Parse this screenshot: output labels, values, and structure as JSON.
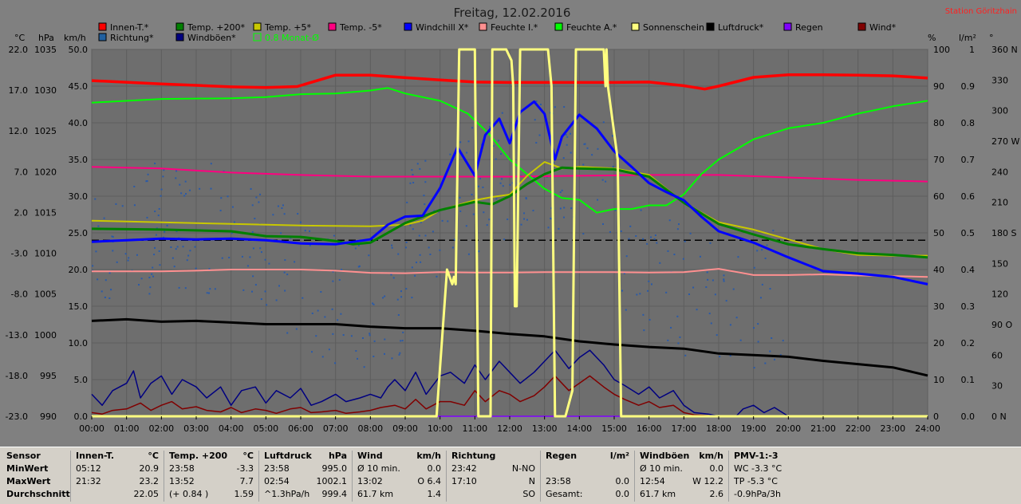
{
  "title": "Freitag, 12.02.2016",
  "station": "Station Göritzhain",
  "axis_units": {
    "c": "°C",
    "hpa": "hPa",
    "kmh": "km/h",
    "pct": "%",
    "lm2": "l/m²",
    "deg": "°"
  },
  "legend": [
    {
      "label": "Innen-T.*",
      "color": "#ff0000"
    },
    {
      "label": "Temp. +200*",
      "color": "#008000"
    },
    {
      "label": "Temp. +5*",
      "color": "#c8c800"
    },
    {
      "label": "Temp. -5*",
      "color": "#ff0080"
    },
    {
      "label": "Windchill X*",
      "color": "#0000ff"
    },
    {
      "label": "Feuchte I.*",
      "color": "#ff9090"
    },
    {
      "label": "Feuchte A.*",
      "color": "#00ff00"
    },
    {
      "label": "Sonnenschein",
      "color": "#ffff80"
    },
    {
      "label": "Luftdruck*",
      "color": "#000000"
    },
    {
      "label": "Regen",
      "color": "#8000ff"
    },
    {
      "label": "Wind*",
      "color": "#800000"
    },
    {
      "label": "Richtung*",
      "color": "#2060a0"
    },
    {
      "label": "Windböen*",
      "color": "#000080"
    },
    {
      "label": "0.8 Monat-Ø",
      "color": "#00ff00",
      "outline": true
    }
  ],
  "chart_data": {
    "type": "line",
    "x_ticks": [
      "00:00",
      "01:00",
      "02:00",
      "03:00",
      "04:00",
      "05:00",
      "06:00",
      "07:00",
      "08:00",
      "09:00",
      "10:00",
      "11:00",
      "12:00",
      "13:00",
      "14:00",
      "15:00",
      "16:00",
      "17:00",
      "18:00",
      "19:00",
      "20:00",
      "21:00",
      "22:00",
      "23:00",
      "24:00"
    ],
    "xlim": [
      0,
      24
    ],
    "axes": {
      "temp_c": {
        "ticks": [
          "22.0",
          "17.0",
          "12.0",
          "7.0",
          "2.0",
          "-3.0",
          "-8.0",
          "-13.0",
          "-18.0",
          "-23.0"
        ],
        "ylim": [
          -23,
          22
        ]
      },
      "pressure_hpa": {
        "ticks": [
          "1035",
          "1030",
          "1025",
          "1020",
          "1015",
          "1010",
          "1005",
          "1000",
          "995",
          "990"
        ],
        "ylim": [
          990,
          1035
        ]
      },
      "wind_kmh": {
        "ticks": [
          "50.0",
          "45.0",
          "40.0",
          "35.0",
          "30.0",
          "25.0",
          "20.0",
          "15.0",
          "10.0",
          "5.0",
          "0.0"
        ],
        "ylim": [
          0,
          50
        ]
      },
      "humidity_pct": {
        "ticks": [
          "100",
          "90",
          "80",
          "70",
          "60",
          "50",
          "40",
          "30",
          "20",
          "10",
          "0"
        ],
        "ylim": [
          0,
          100
        ]
      },
      "rain_lm2": {
        "ticks": [
          "1",
          "0.9",
          "0.8",
          "0.7",
          "0.6",
          "0.5",
          "0.4",
          "0.3",
          "0.2",
          "0.1",
          "0.0"
        ],
        "ylim": [
          0,
          1
        ]
      },
      "direction_deg": {
        "ticks": [
          "360 N",
          "330",
          "300",
          "270 W",
          "240",
          "210",
          "180 S",
          "150",
          "120",
          "90 O",
          "60",
          "30",
          "0 N"
        ],
        "ylim": [
          0,
          360
        ]
      }
    },
    "reference_line": {
      "value_kmh": 24.0,
      "style": "dashed"
    },
    "series": [
      {
        "name": "Innen-T.*",
        "axis": "humidity_pct",
        "color": "#ff0000",
        "x": [
          0,
          2,
          4,
          5,
          5.9,
          7,
          8,
          9,
          10,
          11,
          12,
          13,
          14,
          15,
          16,
          17,
          17.6,
          18,
          19,
          20,
          21,
          22,
          23,
          24
        ],
        "y": [
          91.5,
          90.6,
          89.8,
          89.6,
          89.9,
          93,
          93,
          92.3,
          91.7,
          91.1,
          91,
          91,
          91,
          91,
          91.1,
          90.1,
          89.2,
          90,
          92.4,
          93.1,
          93.1,
          93,
          92.8,
          92.2
        ]
      },
      {
        "name": "Feuchte A.*",
        "axis": "humidity_pct",
        "color": "#00ff00",
        "x": [
          0,
          2,
          4,
          5,
          6,
          7,
          8,
          8.5,
          9,
          10,
          10.8,
          11.4,
          12,
          12.5,
          13,
          13.5,
          14,
          14.5,
          15,
          15.5,
          16,
          16.5,
          17,
          17.5,
          18,
          19,
          20,
          21,
          22,
          23,
          24
        ],
        "y": [
          85.5,
          86.5,
          86.7,
          87,
          87.8,
          88,
          88.8,
          89.5,
          88,
          86,
          82.5,
          77,
          70,
          66,
          62,
          59.5,
          59,
          55.5,
          56.5,
          56.5,
          57.5,
          57.5,
          60.5,
          66,
          70,
          75.5,
          78.5,
          80,
          82.5,
          84.5,
          86
        ]
      },
      {
        "name": "Feuchte I.*",
        "axis": "humidity_pct",
        "color": "#ff9090",
        "x": [
          0,
          2,
          3,
          4,
          5,
          6,
          7,
          8,
          9,
          10,
          11,
          12,
          13,
          14,
          15,
          16,
          17,
          18,
          18.6,
          19,
          20,
          21,
          22,
          23,
          24
        ],
        "y": [
          39.5,
          39.5,
          39.7,
          40,
          40,
          40,
          39.7,
          39.1,
          39,
          39.3,
          39.2,
          39.2,
          39.3,
          39.3,
          39.3,
          39.2,
          39.3,
          40.2,
          39.2,
          38.5,
          38.5,
          38.7,
          38.4,
          38.2,
          38
        ]
      },
      {
        "name": "Sonnenschein",
        "axis": "humidity_pct",
        "color": "#ffff80",
        "x": [
          0,
          9.9,
          10.2,
          10.35,
          10.4,
          10.45,
          10.55,
          10.6,
          11,
          11.05,
          11.1,
          11.2,
          11.45,
          11.5,
          11.6,
          11.9,
          12.05,
          12.1,
          12.15,
          12.2,
          12.3,
          12.7,
          13.1,
          13.2,
          13.3,
          13.6,
          13.8,
          13.9,
          14.3,
          14.7,
          14.75,
          14.78,
          14.82,
          15.1,
          15.2,
          15.3,
          24
        ],
        "y": [
          0,
          0,
          40,
          36,
          38,
          36,
          100,
          100,
          100,
          50,
          0,
          0,
          0,
          100,
          100,
          100,
          97,
          90,
          30,
          30,
          100,
          100,
          100,
          90,
          0,
          0,
          7,
          100,
          100,
          100,
          90,
          100,
          90,
          70,
          0,
          0,
          0
        ]
      },
      {
        "name": "Temp. -5*",
        "axis": "temp_c",
        "color": "#ff0080",
        "x": [
          0,
          2,
          4,
          6,
          8,
          10,
          12,
          14,
          16,
          18,
          20,
          22,
          24
        ],
        "y": [
          7.6,
          7.4,
          6.9,
          6.6,
          6.4,
          6.4,
          6.4,
          6.5,
          6.6,
          6.6,
          6.3,
          6.0,
          5.8
        ]
      },
      {
        "name": "Temp. +5*",
        "axis": "temp_c",
        "color": "#c8c800",
        "x": [
          0,
          2,
          4,
          6,
          8,
          9,
          9.5,
          10,
          11,
          11.5,
          12,
          12.5,
          13,
          13.5,
          14,
          14.5,
          15,
          16,
          17,
          18,
          19,
          20,
          21,
          22,
          23,
          24
        ],
        "y": [
          1,
          0.8,
          0.6,
          0.4,
          0.3,
          0.5,
          1,
          2.3,
          3.5,
          3.9,
          4.2,
          6.5,
          8.2,
          7.4,
          7.6,
          7.5,
          7.4,
          6.6,
          3.2,
          0.8,
          -0.1,
          -1.3,
          -2.5,
          -3.2,
          -3.3,
          -3.3
        ]
      },
      {
        "name": "Temp. +200*",
        "axis": "temp_c",
        "color": "#008000",
        "x": [
          0,
          2,
          4,
          5,
          6,
          7,
          7.5,
          8,
          9,
          10,
          11,
          11.5,
          12,
          12.5,
          13,
          13.5,
          14,
          15,
          16,
          17,
          18,
          19,
          20,
          21,
          22,
          23,
          24
        ],
        "y": [
          0,
          -0.1,
          -0.3,
          -0.9,
          -1,
          -1.5,
          -1.9,
          -1.7,
          0.7,
          2.3,
          3.3,
          3,
          4,
          5.5,
          6.7,
          7.5,
          7.4,
          7.3,
          6.4,
          3.2,
          0.6,
          -0.7,
          -1.9,
          -2.5,
          -3,
          -3.2,
          -3.5
        ]
      },
      {
        "name": "Windchill X*",
        "axis": "temp_c",
        "color": "#0000ff",
        "x": [
          0,
          1,
          2,
          3,
          4,
          5,
          5.5,
          6,
          7,
          8,
          8.5,
          9,
          9.5,
          10,
          10.5,
          11,
          11.3,
          11.7,
          12,
          12.3,
          12.7,
          13,
          13.3,
          13.5,
          14,
          14.5,
          15,
          15.5,
          16,
          16.5,
          17,
          17.5,
          18,
          19,
          20,
          21,
          22,
          23,
          24
        ],
        "y": [
          -1.6,
          -1.4,
          -1.2,
          -1.3,
          -1.2,
          -1.4,
          -1.6,
          -1.8,
          -1.9,
          -1.3,
          0.5,
          1.5,
          1.6,
          5,
          10,
          6.5,
          11.5,
          13.5,
          10.5,
          14.3,
          15.6,
          14.1,
          8.5,
          11.3,
          14,
          12.3,
          9.5,
          7.6,
          5.6,
          4.5,
          3.5,
          1.5,
          -0.3,
          -1.7,
          -3.5,
          -5.2,
          -5.5,
          -5.9,
          -6.8
        ]
      },
      {
        "name": "Luftdruck*",
        "axis": "pressure_hpa",
        "color": "#000000",
        "x": [
          0,
          1,
          2,
          3,
          4,
          5,
          6,
          7,
          8,
          9,
          10,
          11,
          12,
          13,
          14,
          15,
          16,
          17,
          18,
          19,
          20,
          21,
          22,
          23,
          24
        ],
        "y": [
          1001.7,
          1001.9,
          1001.6,
          1001.7,
          1001.5,
          1001.3,
          1001.3,
          1001.3,
          1001.0,
          1000.8,
          1000.8,
          1000.5,
          1000.1,
          999.8,
          999.2,
          998.8,
          998.5,
          998.3,
          997.7,
          997.5,
          997.3,
          996.8,
          996.4,
          996.0,
          995.0
        ]
      },
      {
        "name": "Windböen*",
        "axis": "wind_kmh",
        "color": "#000080",
        "x": [
          0,
          0.3,
          0.6,
          1,
          1.2,
          1.4,
          1.7,
          2,
          2.3,
          2.6,
          3,
          3.3,
          3.7,
          4,
          4.3,
          4.7,
          5,
          5.3,
          5.7,
          6,
          6.3,
          6.6,
          7,
          7.3,
          7.7,
          8,
          8.3,
          8.5,
          8.7,
          9,
          9.3,
          9.6,
          10,
          10.3,
          10.7,
          11,
          11.3,
          11.7,
          12,
          12.3,
          12.7,
          13,
          13.3,
          13.7,
          14,
          14.3,
          14.7,
          15,
          15.3,
          15.7,
          16,
          16.3,
          16.7,
          17,
          17.3,
          17.7,
          18,
          18.5,
          18.7,
          19,
          19.3,
          19.6,
          20,
          24
        ],
        "y": [
          3,
          1.5,
          3.5,
          4.5,
          6.2,
          2.5,
          4.5,
          5.5,
          3,
          5,
          4,
          2.5,
          4,
          1.5,
          3.5,
          4,
          1.8,
          3.5,
          2.5,
          3.8,
          1.5,
          2,
          3,
          2,
          2.5,
          3,
          2.5,
          4,
          5,
          3.5,
          6,
          3,
          5.5,
          6,
          4.5,
          7,
          5,
          7.5,
          6,
          4.5,
          6,
          7.5,
          9,
          6.5,
          8,
          9,
          7,
          5,
          4.2,
          3,
          4,
          2.5,
          3.5,
          1.5,
          0.5,
          0.3,
          0,
          0,
          1,
          1.5,
          0.5,
          1.2,
          0,
          0
        ]
      },
      {
        "name": "Wind*",
        "axis": "wind_kmh",
        "color": "#800000",
        "x": [
          0,
          0.3,
          0.6,
          1,
          1.4,
          1.7,
          2,
          2.3,
          2.6,
          3,
          3.3,
          3.7,
          4,
          4.3,
          4.7,
          5,
          5.3,
          5.7,
          6,
          6.3,
          6.6,
          7,
          7.3,
          7.7,
          8,
          8.3,
          8.7,
          9,
          9.3,
          9.6,
          10,
          10.3,
          10.7,
          11,
          11.3,
          11.7,
          12,
          12.3,
          12.7,
          13,
          13.3,
          13.7,
          14,
          14.3,
          14.7,
          15,
          15.3,
          15.7,
          16,
          16.3,
          16.7,
          17,
          17.3,
          17.7,
          18,
          24
        ],
        "y": [
          0.5,
          0.3,
          0.8,
          1,
          1.8,
          0.8,
          1.5,
          2,
          1,
          1.3,
          0.8,
          0.6,
          1.2,
          0.5,
          1,
          0.8,
          0.4,
          1,
          1.2,
          0.5,
          0.6,
          0.8,
          0.4,
          0.6,
          0.8,
          1.2,
          1.5,
          1,
          2.3,
          1,
          2,
          2,
          1.5,
          3.5,
          2,
          3.5,
          3,
          2,
          2.8,
          4,
          5.5,
          3.5,
          4.5,
          5.5,
          4,
          3,
          2.3,
          1.5,
          2,
          1.2,
          1.5,
          0.5,
          0.2,
          0.1,
          0,
          0
        ]
      },
      {
        "name": "Regen",
        "axis": "rain_lm2",
        "color": "#8000ff",
        "x": [
          0,
          24
        ],
        "y": [
          0,
          0
        ]
      }
    ]
  },
  "stats": {
    "sensor": {
      "header": "Sensor",
      "rows": [
        "MinWert",
        "MaxWert",
        "Durchschnitt"
      ]
    },
    "innen": {
      "header": "Innen-T.",
      "unit": "°C",
      "rows": [
        [
          "05:12",
          "20.9"
        ],
        [
          "21:32",
          "23.2"
        ],
        [
          "",
          "22.05"
        ]
      ]
    },
    "temp200": {
      "header": "Temp. +200",
      "unit": "°C",
      "rows": [
        [
          "23:58",
          "-3.3"
        ],
        [
          "13:52",
          "7.7"
        ],
        [
          "(+ 0.84 )",
          "1.59"
        ]
      ]
    },
    "luftdruck": {
      "header": "Luftdruck",
      "unit": "hPa",
      "rows": [
        [
          "23:58",
          "995.0"
        ],
        [
          "02:54",
          "1002.1"
        ],
        [
          "^1.3hPa/h",
          "999.4"
        ]
      ]
    },
    "wind": {
      "header": "Wind",
      "unit": "km/h",
      "rows": [
        [
          "Ø 10 min.",
          "0.0"
        ],
        [
          "13:02",
          "O 6.4"
        ],
        [
          "61.7 km",
          "1.4"
        ]
      ]
    },
    "richtung": {
      "header": "Richtung",
      "unit": "",
      "rows": [
        [
          "23:42",
          "N-NO"
        ],
        [
          "17:10",
          "N"
        ],
        [
          "",
          "SO"
        ]
      ]
    },
    "regen": {
      "header": "Regen",
      "unit": "l/m²",
      "rows": [
        [
          "",
          ""
        ],
        [
          "23:58",
          "0.0"
        ],
        [
          "Gesamt:",
          "0.0"
        ]
      ]
    },
    "windboeen": {
      "header": "Windböen",
      "unit": "km/h",
      "rows": [
        [
          "Ø 10 min.",
          "0.0"
        ],
        [
          "12:54",
          "W 12.2"
        ],
        [
          "61.7 km",
          "2.6"
        ]
      ]
    },
    "pmv": {
      "header": "PMV-1:-3",
      "rows": [
        "WC -3.3 °C",
        "TP -5.3 °C",
        "-0.9hPa/3h"
      ]
    }
  }
}
